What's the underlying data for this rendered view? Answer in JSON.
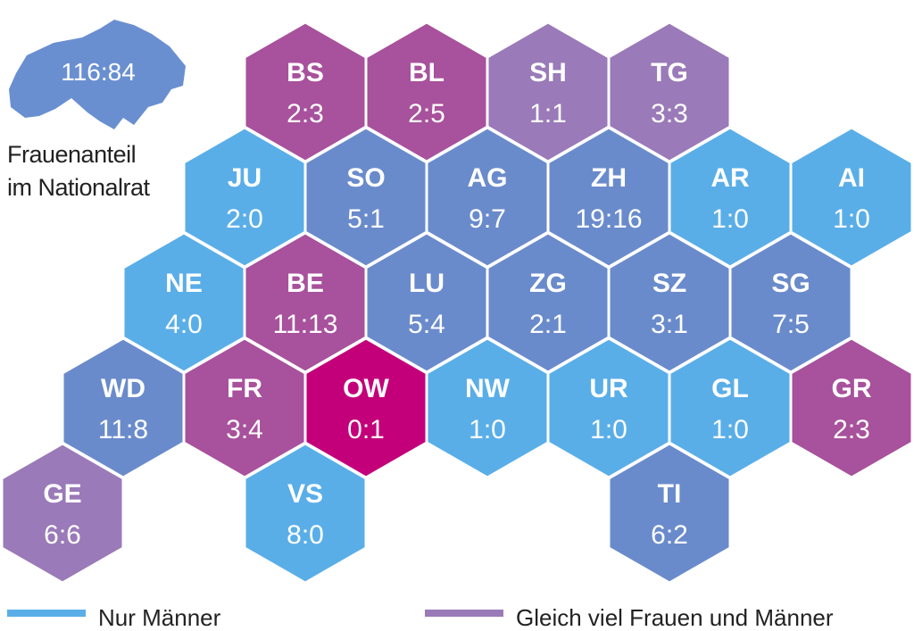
{
  "overview": {
    "ratio": "116:84",
    "caption_line1": "Frauenanteil",
    "caption_line2": "im Nationalrat",
    "shape_color": "#6a8fd0"
  },
  "colors": {
    "men_only": "#5aaee8",
    "more_men": "#6a8bcb",
    "equal": "#9a7ab8",
    "more_women": "#a8519c",
    "women_only": "#c3007a",
    "border": "#ffffff"
  },
  "cantons": [
    {
      "code": "BS",
      "ratio": "2:3",
      "color": "#a8519c"
    },
    {
      "code": "BL",
      "ratio": "2:5",
      "color": "#a8519c"
    },
    {
      "code": "SH",
      "ratio": "1:1",
      "color": "#9a7ab8"
    },
    {
      "code": "TG",
      "ratio": "3:3",
      "color": "#9a7ab8"
    },
    {
      "code": "JU",
      "ratio": "2:0",
      "color": "#5aaee8"
    },
    {
      "code": "SO",
      "ratio": "5:1",
      "color": "#6a8bcb"
    },
    {
      "code": "AG",
      "ratio": "9:7",
      "color": "#6a8bcb"
    },
    {
      "code": "ZH",
      "ratio": "19:16",
      "color": "#6a8bcb"
    },
    {
      "code": "AR",
      "ratio": "1:0",
      "color": "#5aaee8"
    },
    {
      "code": "AI",
      "ratio": "1:0",
      "color": "#5aaee8"
    },
    {
      "code": "NE",
      "ratio": "4:0",
      "color": "#5aaee8"
    },
    {
      "code": "BE",
      "ratio": "11:13",
      "color": "#a8519c"
    },
    {
      "code": "LU",
      "ratio": "5:4",
      "color": "#6a8bcb"
    },
    {
      "code": "ZG",
      "ratio": "2:1",
      "color": "#6a8bcb"
    },
    {
      "code": "SZ",
      "ratio": "3:1",
      "color": "#6a8bcb"
    },
    {
      "code": "SG",
      "ratio": "7:5",
      "color": "#6a8bcb"
    },
    {
      "code": "WD",
      "ratio": "11:8",
      "color": "#6a8bcb"
    },
    {
      "code": "FR",
      "ratio": "3:4",
      "color": "#a8519c"
    },
    {
      "code": "OW",
      "ratio": "0:1",
      "color": "#c3007a"
    },
    {
      "code": "NW",
      "ratio": "1:0",
      "color": "#5aaee8"
    },
    {
      "code": "UR",
      "ratio": "1:0",
      "color": "#5aaee8"
    },
    {
      "code": "GL",
      "ratio": "1:0",
      "color": "#5aaee8"
    },
    {
      "code": "GR",
      "ratio": "2:3",
      "color": "#a8519c"
    },
    {
      "code": "GE",
      "ratio": "6:6",
      "color": "#9a7ab8"
    },
    {
      "code": "VS",
      "ratio": "8:0",
      "color": "#5aaee8"
    },
    {
      "code": "TI",
      "ratio": "6:2",
      "color": "#6a8bcb"
    }
  ],
  "legend": [
    {
      "label": "Nur Männer",
      "color": "#5aaee8"
    },
    {
      "label": "Gleich viel Frauen und Männer",
      "color": "#9a7ab8"
    }
  ]
}
